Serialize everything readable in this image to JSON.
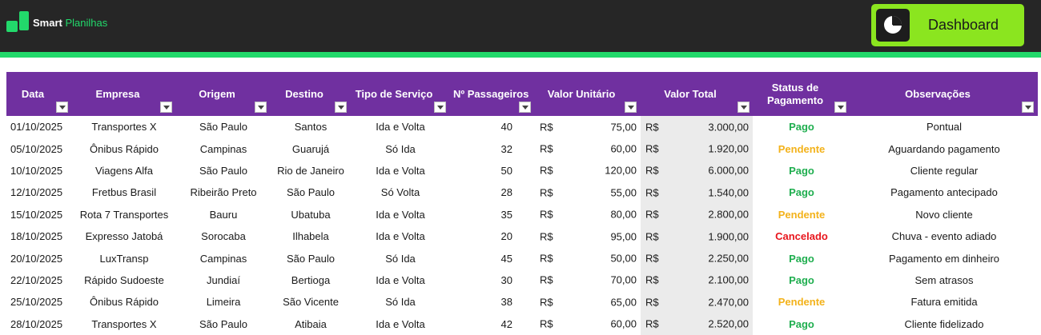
{
  "brand": {
    "name_bold": "Smart",
    "name_light": "Planilhas"
  },
  "dashboard_button": {
    "label": "Dashboard",
    "icon": "pie-chart-icon"
  },
  "colors": {
    "header_bg": "#7030a0",
    "topbar_bg": "#262626",
    "accent_green": "#22d96b",
    "dashboard_green": "#8be51f",
    "status_pago": "#1fae4f",
    "status_pendente": "#f3b21a",
    "status_cancelado": "#e8161d"
  },
  "table": {
    "headers": {
      "data": "Data",
      "empresa": "Empresa",
      "origem": "Origem",
      "destino": "Destino",
      "tipo": "Tipo de Serviço",
      "passageiros": "Nº Passageiros",
      "valor_unitario": "Valor Unitário",
      "valor_total": "Valor Total",
      "status_line1": "Status de",
      "status_line2": "Pagamento",
      "observacoes": "Observações"
    },
    "currency": "R$",
    "rows": [
      {
        "data": "01/10/2025",
        "empresa": "Transportes X",
        "origem": "São Paulo",
        "destino": "Santos",
        "tipo": "Ida e Volta",
        "passageiros": "40",
        "valor_unitario": "75,00",
        "valor_total": "3.000,00",
        "status": "Pago",
        "observacoes": "Pontual"
      },
      {
        "data": "05/10/2025",
        "empresa": "Ônibus Rápido",
        "origem": "Campinas",
        "destino": "Guarujá",
        "tipo": "Só Ida",
        "passageiros": "32",
        "valor_unitario": "60,00",
        "valor_total": "1.920,00",
        "status": "Pendente",
        "observacoes": "Aguardando pagamento"
      },
      {
        "data": "10/10/2025",
        "empresa": "Viagens Alfa",
        "origem": "São Paulo",
        "destino": "Rio de Janeiro",
        "tipo": "Ida e Volta",
        "passageiros": "50",
        "valor_unitario": "120,00",
        "valor_total": "6.000,00",
        "status": "Pago",
        "observacoes": "Cliente regular"
      },
      {
        "data": "12/10/2025",
        "empresa": "Fretbus Brasil",
        "origem": "Ribeirão Preto",
        "destino": "São Paulo",
        "tipo": "Só Volta",
        "passageiros": "28",
        "valor_unitario": "55,00",
        "valor_total": "1.540,00",
        "status": "Pago",
        "observacoes": "Pagamento antecipado"
      },
      {
        "data": "15/10/2025",
        "empresa": "Rota 7 Transportes",
        "origem": "Bauru",
        "destino": "Ubatuba",
        "tipo": "Ida e Volta",
        "passageiros": "35",
        "valor_unitario": "80,00",
        "valor_total": "2.800,00",
        "status": "Pendente",
        "observacoes": "Novo cliente"
      },
      {
        "data": "18/10/2025",
        "empresa": "Expresso Jatobá",
        "origem": "Sorocaba",
        "destino": "Ilhabela",
        "tipo": "Ida e Volta",
        "passageiros": "20",
        "valor_unitario": "95,00",
        "valor_total": "1.900,00",
        "status": "Cancelado",
        "observacoes": "Chuva - evento adiado"
      },
      {
        "data": "20/10/2025",
        "empresa": "LuxTransp",
        "origem": "Campinas",
        "destino": "São Paulo",
        "tipo": "Só Ida",
        "passageiros": "45",
        "valor_unitario": "50,00",
        "valor_total": "2.250,00",
        "status": "Pago",
        "observacoes": "Pagamento em dinheiro"
      },
      {
        "data": "22/10/2025",
        "empresa": "Rápido Sudoeste",
        "origem": "Jundiaí",
        "destino": "Bertioga",
        "tipo": "Ida e Volta",
        "passageiros": "30",
        "valor_unitario": "70,00",
        "valor_total": "2.100,00",
        "status": "Pago",
        "observacoes": "Sem atrasos"
      },
      {
        "data": "25/10/2025",
        "empresa": "Ônibus Rápido",
        "origem": "Limeira",
        "destino": "São Vicente",
        "tipo": "Só Ida",
        "passageiros": "38",
        "valor_unitario": "65,00",
        "valor_total": "2.470,00",
        "status": "Pendente",
        "observacoes": "Fatura emitida"
      },
      {
        "data": "28/10/2025",
        "empresa": "Transportes X",
        "origem": "São Paulo",
        "destino": "Atibaia",
        "tipo": "Ida e Volta",
        "passageiros": "42",
        "valor_unitario": "60,00",
        "valor_total": "2.520,00",
        "status": "Pago",
        "observacoes": "Cliente fidelizado"
      }
    ]
  }
}
